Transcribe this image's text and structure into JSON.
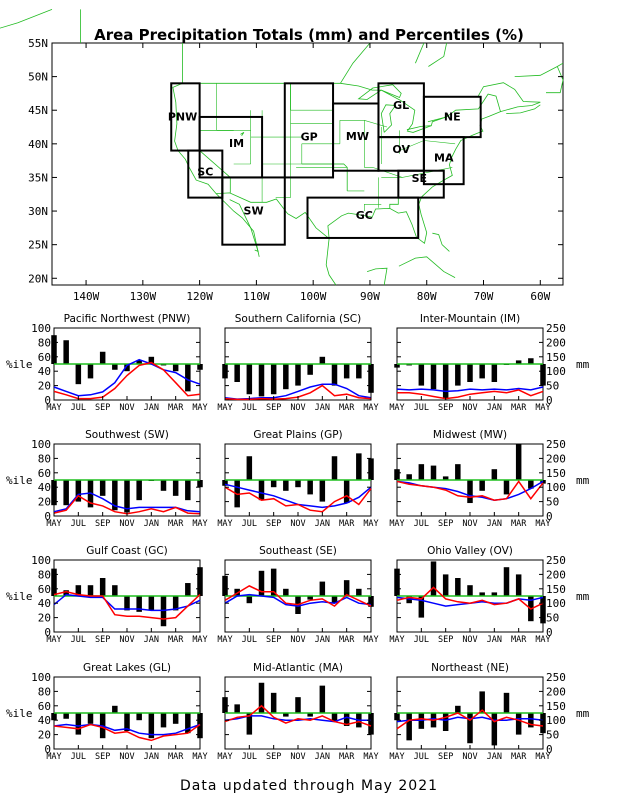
{
  "title": "Area Precipitation Totals (mm) and Percentiles (%)",
  "footer": "Data updated through May 2021",
  "colors": {
    "bars": "#000000",
    "median_line": "#1fbf1f",
    "observed_mm": "#ff0000",
    "normal_mm": "#0000ff",
    "region_label": "#1a4fe0",
    "map_lines": "#22bb22"
  },
  "map": {
    "lat_labels": [
      "55N",
      "50N",
      "45N",
      "40N",
      "35N",
      "30N",
      "25N",
      "20N"
    ],
    "lon_labels": [
      "140W",
      "130W",
      "120W",
      "110W",
      "100W",
      "90W",
      "80W",
      "70W",
      "60W"
    ],
    "regions": [
      {
        "code": "PNW"
      },
      {
        "code": "SC"
      },
      {
        "code": "IM"
      },
      {
        "code": "SW"
      },
      {
        "code": "GP"
      },
      {
        "code": "MW"
      },
      {
        "code": "GL"
      },
      {
        "code": "NE"
      },
      {
        "code": "OV"
      },
      {
        "code": "MA"
      },
      {
        "code": "SE"
      },
      {
        "code": "GC"
      }
    ]
  },
  "axis": {
    "pct_label": "%ile",
    "mm_label": "mm",
    "pct_ticks": [
      "0",
      "20",
      "40",
      "60",
      "80",
      "100"
    ],
    "mm_ticks": [
      "0",
      "50",
      "100",
      "150",
      "200",
      "250"
    ],
    "month_ticks": [
      "MAY",
      "JUL",
      "SEP",
      "NOV",
      "JAN",
      "MAR",
      "MAY"
    ]
  },
  "chart_data": [
    {
      "type": "bar",
      "title": "Pacific Northwest (PNW)",
      "months": [
        "MAY",
        "JUN",
        "JUL",
        "AUG",
        "SEP",
        "OCT",
        "NOV",
        "DEC",
        "JAN",
        "FEB",
        "MAR",
        "APR",
        "MAY"
      ],
      "percentile": [
        90,
        83,
        22,
        30,
        67,
        42,
        40,
        55,
        60,
        48,
        40,
        12,
        42
      ],
      "observed_mm": [
        30,
        18,
        5,
        5,
        10,
        40,
        85,
        120,
        130,
        105,
        60,
        15,
        20
      ],
      "normal_mm": [
        45,
        30,
        15,
        18,
        28,
        60,
        120,
        140,
        125,
        105,
        95,
        70,
        55
      ],
      "median_pct": 50,
      "pct_range": [
        0,
        100
      ],
      "mm_range": [
        0,
        250
      ]
    },
    {
      "type": "bar",
      "title": "Southern California (SC)",
      "months": [
        "MAY",
        "JUN",
        "JUL",
        "AUG",
        "SEP",
        "OCT",
        "NOV",
        "DEC",
        "JAN",
        "FEB",
        "MAR",
        "APR",
        "MAY"
      ],
      "percentile": [
        30,
        25,
        8,
        5,
        8,
        15,
        20,
        35,
        60,
        20,
        30,
        30,
        10
      ],
      "observed_mm": [
        5,
        2,
        2,
        5,
        3,
        5,
        10,
        25,
        50,
        15,
        20,
        8,
        5
      ],
      "normal_mm": [
        8,
        3,
        5,
        8,
        8,
        15,
        30,
        45,
        55,
        55,
        40,
        15,
        8
      ],
      "median_pct": 50,
      "pct_range": [
        0,
        100
      ],
      "mm_range": [
        0,
        250
      ]
    },
    {
      "type": "bar",
      "title": "Inter-Mountain (IM)",
      "months": [
        "MAY",
        "JUN",
        "JUL",
        "AUG",
        "SEP",
        "OCT",
        "NOV",
        "DEC",
        "JAN",
        "FEB",
        "MAR",
        "APR",
        "MAY"
      ],
      "percentile": [
        45,
        48,
        20,
        15,
        2,
        20,
        25,
        30,
        25,
        50,
        55,
        58,
        20
      ],
      "observed_mm": [
        25,
        25,
        20,
        12,
        5,
        10,
        20,
        25,
        30,
        25,
        35,
        15,
        30
      ],
      "normal_mm": [
        38,
        35,
        38,
        35,
        30,
        32,
        38,
        35,
        38,
        35,
        40,
        35,
        45
      ],
      "median_pct": 50,
      "pct_range": [
        0,
        100
      ],
      "mm_range": [
        0,
        250
      ]
    },
    {
      "type": "bar",
      "title": "Southwest (SW)",
      "months": [
        "MAY",
        "JUN",
        "JUL",
        "AUG",
        "SEP",
        "OCT",
        "NOV",
        "DEC",
        "JAN",
        "FEB",
        "MAR",
        "APR",
        "MAY"
      ],
      "percentile": [
        15,
        15,
        20,
        12,
        28,
        8,
        5,
        22,
        50,
        35,
        28,
        22,
        40
      ],
      "observed_mm": [
        10,
        20,
        70,
        45,
        35,
        15,
        8,
        15,
        25,
        15,
        30,
        10,
        8
      ],
      "normal_mm": [
        15,
        25,
        75,
        80,
        60,
        35,
        25,
        30,
        30,
        30,
        30,
        18,
        15
      ],
      "median_pct": 50,
      "pct_range": [
        0,
        100
      ],
      "mm_range": [
        0,
        250
      ]
    },
    {
      "type": "bar",
      "title": "Great Plains (GP)",
      "months": [
        "MAY",
        "JUN",
        "JUL",
        "AUG",
        "SEP",
        "OCT",
        "NOV",
        "DEC",
        "JAN",
        "FEB",
        "MAR",
        "APR",
        "MAY"
      ],
      "percentile": [
        42,
        12,
        83,
        22,
        40,
        35,
        40,
        30,
        20,
        83,
        18,
        87,
        80
      ],
      "observed_mm": [
        100,
        75,
        80,
        55,
        60,
        35,
        40,
        20,
        15,
        50,
        70,
        40,
        95
      ],
      "normal_mm": [
        110,
        100,
        90,
        80,
        70,
        55,
        40,
        35,
        30,
        35,
        45,
        65,
        100
      ],
      "median_pct": 50,
      "pct_range": [
        0,
        100
      ],
      "mm_range": [
        0,
        250
      ]
    },
    {
      "type": "bar",
      "title": "Midwest (MW)",
      "months": [
        "MAY",
        "JUN",
        "JUL",
        "AUG",
        "SEP",
        "OCT",
        "NOV",
        "DEC",
        "JAN",
        "FEB",
        "MAR",
        "APR",
        "MAY"
      ],
      "percentile": [
        65,
        58,
        72,
        70,
        55,
        72,
        18,
        35,
        65,
        30,
        100,
        38,
        45
      ],
      "observed_mm": [
        120,
        110,
        105,
        100,
        90,
        70,
        65,
        70,
        55,
        60,
        120,
        60,
        115
      ],
      "normal_mm": [
        120,
        115,
        105,
        100,
        95,
        85,
        70,
        65,
        55,
        60,
        75,
        95,
        120
      ],
      "median_pct": 50,
      "pct_range": [
        0,
        100
      ],
      "mm_range": [
        0,
        250
      ]
    },
    {
      "type": "bar",
      "title": "Gulf Coast (GC)",
      "months": [
        "MAY",
        "JUN",
        "JUL",
        "AUG",
        "SEP",
        "OCT",
        "NOV",
        "DEC",
        "JAN",
        "FEB",
        "MAR",
        "APR",
        "MAY"
      ],
      "percentile": [
        88,
        58,
        65,
        65,
        75,
        65,
        30,
        28,
        30,
        8,
        30,
        68,
        90
      ],
      "observed_mm": [
        130,
        140,
        130,
        125,
        125,
        60,
        55,
        55,
        50,
        45,
        50,
        90,
        130
      ],
      "normal_mm": [
        95,
        130,
        125,
        120,
        120,
        80,
        80,
        80,
        75,
        75,
        80,
        90,
        110
      ],
      "median_pct": 50,
      "pct_range": [
        0,
        100
      ],
      "mm_range": [
        0,
        250
      ]
    },
    {
      "type": "bar",
      "title": "Southeast (SE)",
      "months": [
        "MAY",
        "JUN",
        "JUL",
        "AUG",
        "SEP",
        "OCT",
        "NOV",
        "DEC",
        "JAN",
        "FEB",
        "MAR",
        "APR",
        "MAY"
      ],
      "percentile": [
        78,
        60,
        40,
        85,
        88,
        60,
        25,
        45,
        70,
        40,
        72,
        60,
        35
      ],
      "observed_mm": [
        110,
        135,
        160,
        140,
        140,
        100,
        95,
        110,
        115,
        90,
        130,
        110,
        90
      ],
      "normal_mm": [
        100,
        125,
        130,
        125,
        120,
        95,
        90,
        100,
        105,
        100,
        120,
        100,
        95
      ],
      "median_pct": 50,
      "pct_range": [
        0,
        100
      ],
      "mm_range": [
        0,
        250
      ]
    },
    {
      "type": "bar",
      "title": "Ohio Valley (OV)",
      "months": [
        "MAY",
        "JUN",
        "JUL",
        "AUG",
        "SEP",
        "OCT",
        "NOV",
        "DEC",
        "JAN",
        "FEB",
        "MAR",
        "APR",
        "MAY"
      ],
      "percentile": [
        88,
        40,
        20,
        98,
        80,
        75,
        65,
        55,
        55,
        90,
        80,
        15,
        12
      ],
      "observed_mm": [
        110,
        120,
        115,
        155,
        115,
        105,
        100,
        110,
        95,
        100,
        115,
        80,
        100
      ],
      "normal_mm": [
        120,
        115,
        110,
        100,
        90,
        95,
        100,
        105,
        100,
        100,
        115,
        110,
        120
      ],
      "median_pct": 50,
      "pct_range": [
        0,
        100
      ],
      "mm_range": [
        0,
        250
      ]
    },
    {
      "type": "bar",
      "title": "Great Lakes (GL)",
      "months": [
        "MAY",
        "JUN",
        "JUL",
        "AUG",
        "SEP",
        "OCT",
        "NOV",
        "DEC",
        "JAN",
        "FEB",
        "MAR",
        "APR",
        "MAY"
      ],
      "percentile": [
        40,
        42,
        20,
        35,
        15,
        60,
        25,
        40,
        15,
        30,
        35,
        22,
        15
      ],
      "observed_mm": [
        80,
        75,
        70,
        85,
        75,
        55,
        60,
        40,
        30,
        45,
        50,
        55,
        85
      ],
      "normal_mm": [
        80,
        85,
        80,
        85,
        80,
        65,
        70,
        55,
        50,
        50,
        55,
        70,
        85
      ],
      "median_pct": 50,
      "pct_range": [
        0,
        100
      ],
      "mm_range": [
        0,
        250
      ]
    },
    {
      "type": "bar",
      "title": "Mid-Atlantic (MA)",
      "months": [
        "MAY",
        "JUN",
        "JUL",
        "AUG",
        "SEP",
        "OCT",
        "NOV",
        "DEC",
        "JAN",
        "FEB",
        "MAR",
        "APR",
        "MAY"
      ],
      "percentile": [
        72,
        62,
        20,
        92,
        78,
        45,
        72,
        45,
        88,
        38,
        32,
        30,
        20
      ],
      "observed_mm": [
        95,
        110,
        115,
        150,
        110,
        90,
        105,
        100,
        115,
        95,
        85,
        95,
        80
      ],
      "normal_mm": [
        100,
        105,
        115,
        115,
        105,
        100,
        100,
        105,
        100,
        95,
        110,
        100,
        100
      ],
      "median_pct": 50,
      "pct_range": [
        0,
        100
      ],
      "mm_range": [
        0,
        250
      ]
    },
    {
      "type": "bar",
      "title": "Northeast (NE)",
      "months": [
        "MAY",
        "JUN",
        "JUL",
        "AUG",
        "SEP",
        "OCT",
        "NOV",
        "DEC",
        "JAN",
        "FEB",
        "MAR",
        "APR",
        "MAY"
      ],
      "percentile": [
        40,
        12,
        28,
        30,
        25,
        60,
        8,
        80,
        5,
        78,
        20,
        30,
        22
      ],
      "observed_mm": [
        70,
        100,
        105,
        100,
        110,
        125,
        100,
        135,
        95,
        110,
        100,
        85,
        80
      ],
      "normal_mm": [
        95,
        100,
        100,
        105,
        100,
        110,
        105,
        110,
        100,
        100,
        105,
        105,
        100
      ],
      "median_pct": 50,
      "pct_range": [
        0,
        100
      ],
      "mm_range": [
        0,
        250
      ]
    }
  ]
}
